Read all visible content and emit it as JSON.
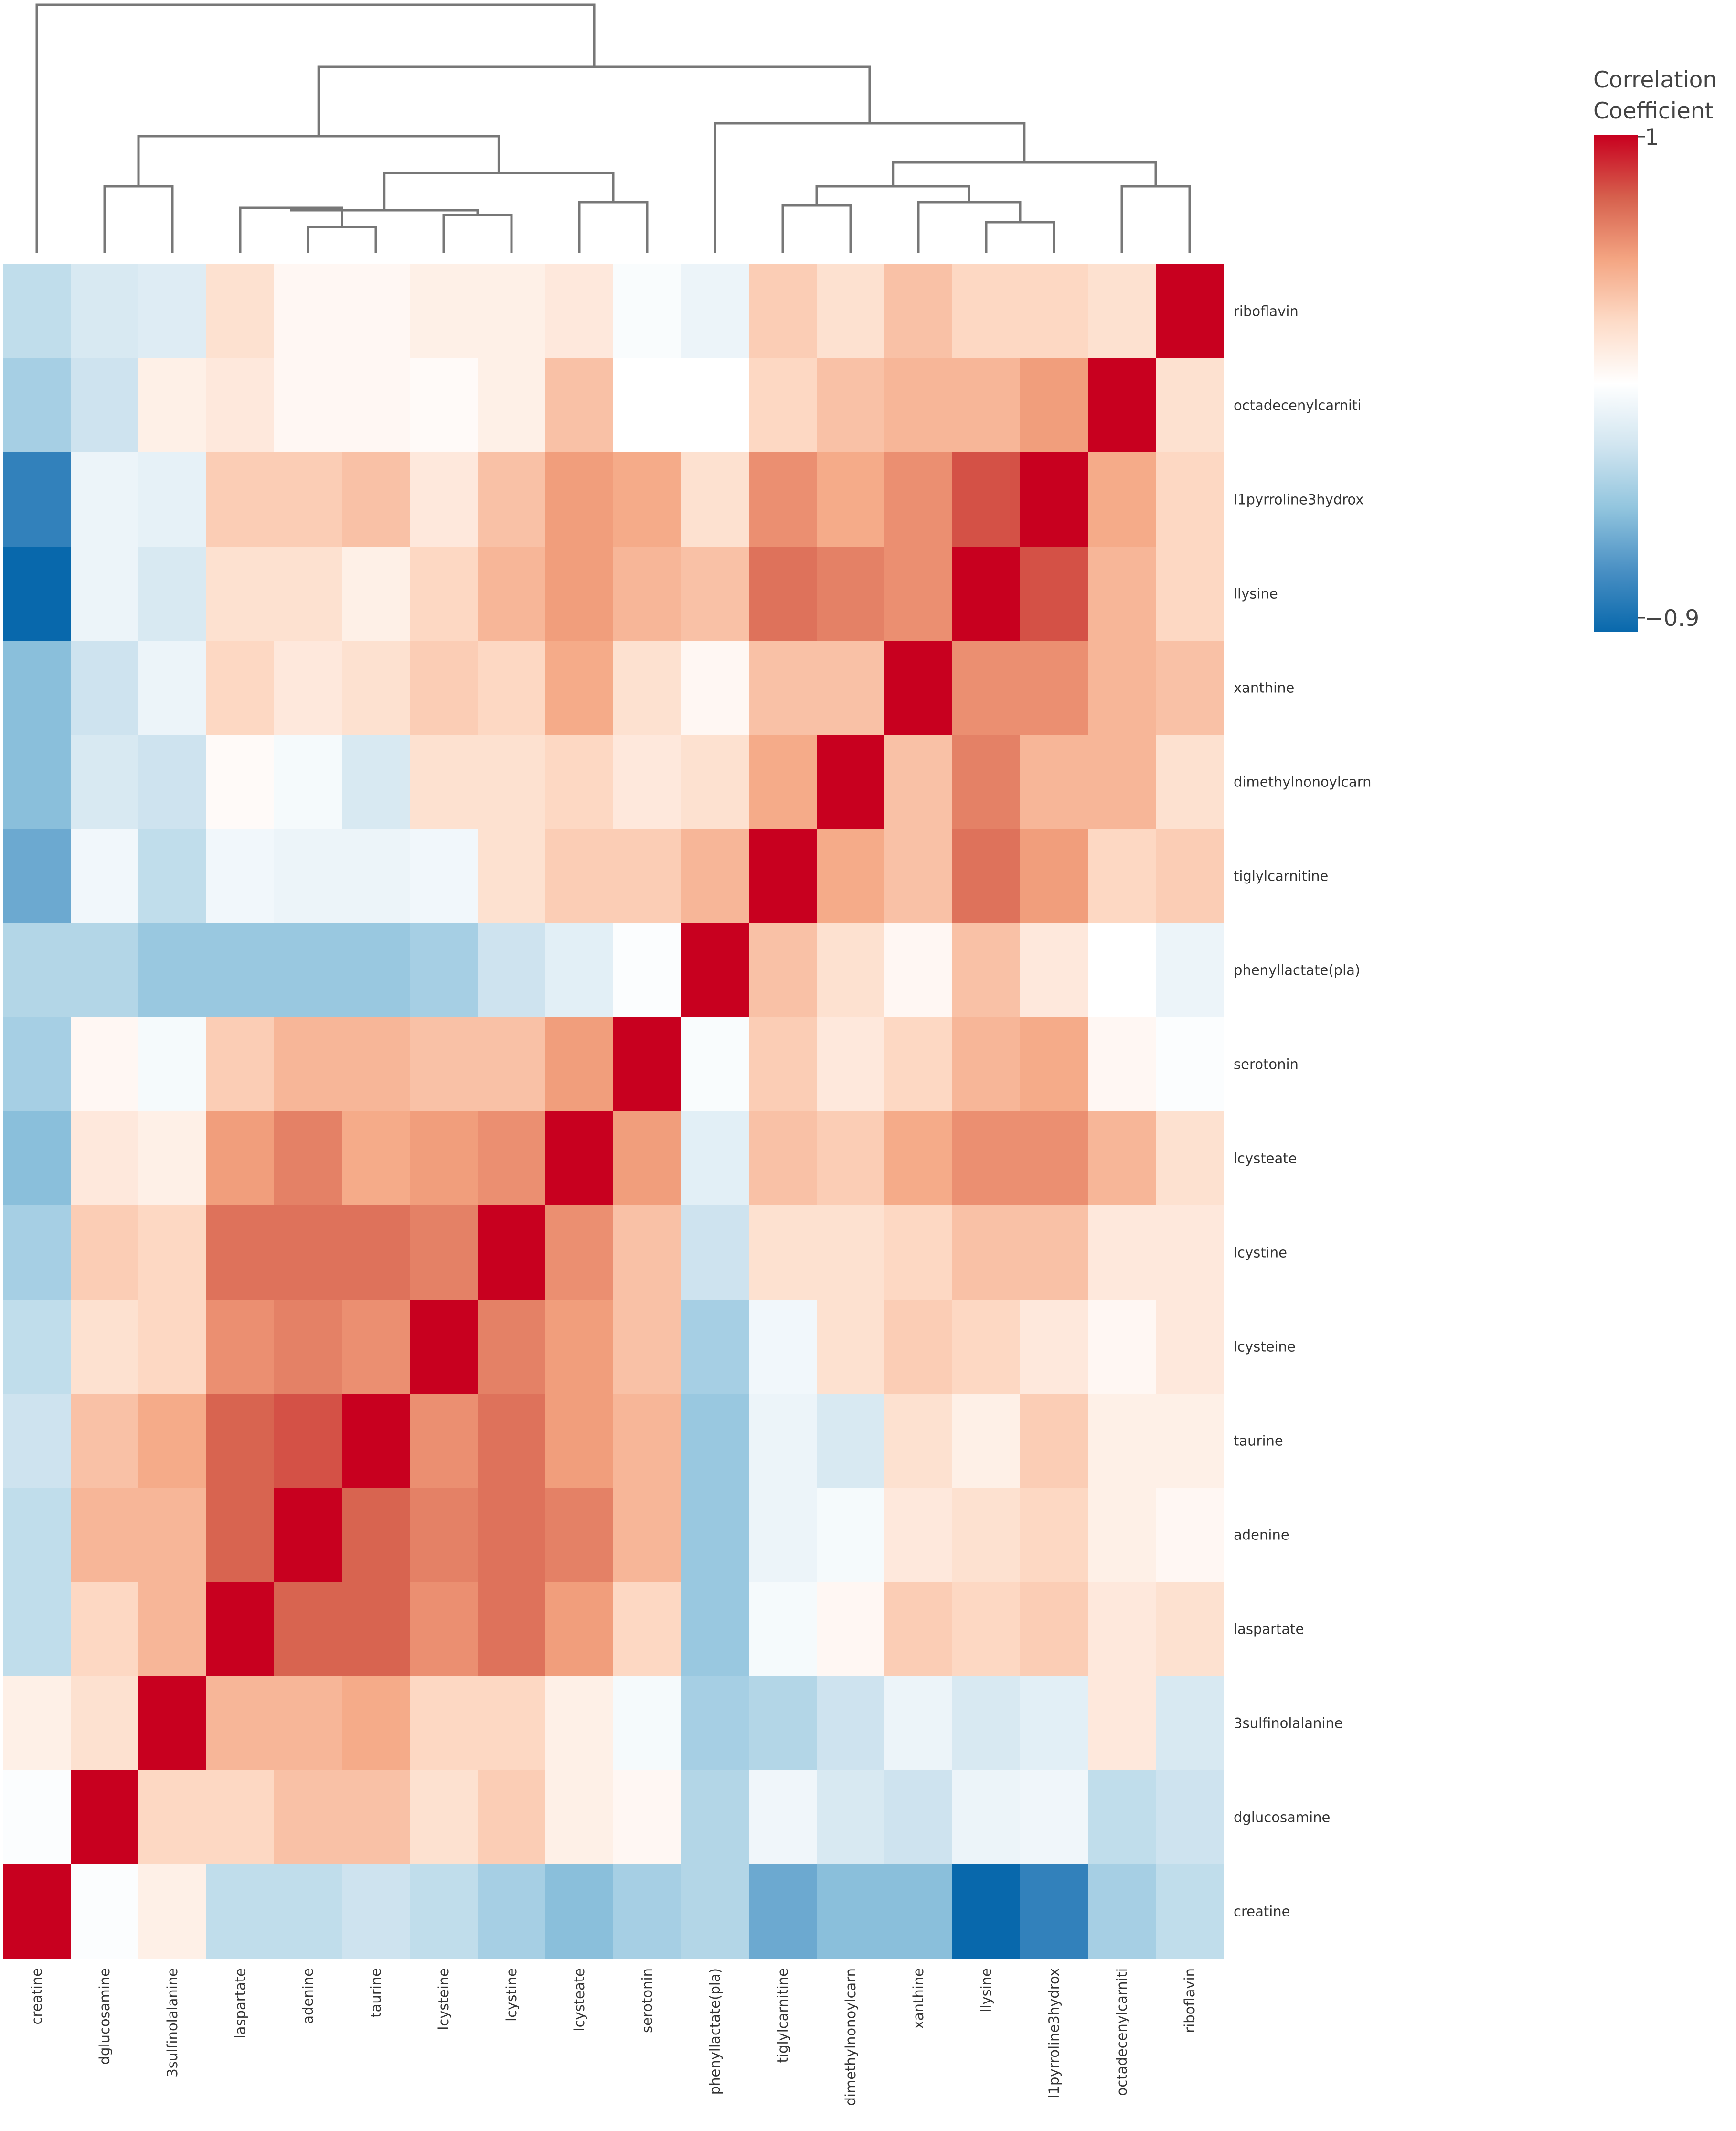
{
  "chart_data": {
    "type": "heatmap",
    "title": "",
    "xlabel": "",
    "ylabel": "",
    "colorbar": {
      "title": [
        "Correlation",
        "Coefficient"
      ],
      "max_label": "1",
      "min_label": "−0.9",
      "range": [
        -0.9,
        1
      ],
      "colors": [
        "#0868ac",
        "#4a90c4",
        "#92c5de",
        "#d1e5f0",
        "#ffffff",
        "#fddbc7",
        "#f4a582",
        "#d6604d",
        "#c8001f"
      ]
    },
    "x_labels": [
      "creatine",
      "dglucosamine",
      "3sulfinolalanine",
      "laspartate",
      "adenine",
      "taurine",
      "lcysteine",
      "lcystine",
      "lcysteate",
      "serotonin",
      "phenyllactate(pla)",
      "tiglylcarnitine",
      "dimethylnonoylcarn",
      "xanthine",
      "llysine",
      "l1pyrroline3hydrox",
      "octadecenylcarniti",
      "riboflavin"
    ],
    "y_labels": [
      "riboflavin",
      "octadecenylcarniti",
      "l1pyrroline3hydrox",
      "llysine",
      "xanthine",
      "dimethylnonoylcarn",
      "tiglylcarnitine",
      "phenyllactate(pla)",
      "serotonin",
      "lcysteate",
      "lcystine",
      "lcysteine",
      "taurine",
      "adenine",
      "laspartate",
      "3sulfinolalanine",
      "dglucosamine",
      "creatine"
    ],
    "values": [
      [
        -0.25,
        -0.15,
        -0.12,
        0.25,
        0.1,
        0.1,
        0.15,
        0.15,
        0.2,
        0.02,
        -0.05,
        0.35,
        0.25,
        0.4,
        0.3,
        0.3,
        0.25,
        1
      ],
      [
        -0.35,
        -0.2,
        0.15,
        0.2,
        0.1,
        0.1,
        0.08,
        0.15,
        0.4,
        0.05,
        0.05,
        0.3,
        0.4,
        0.45,
        0.45,
        0.55,
        1,
        0.25
      ],
      [
        -0.75,
        -0.05,
        -0.08,
        0.35,
        0.35,
        0.4,
        0.2,
        0.4,
        0.55,
        0.5,
        0.25,
        0.6,
        0.5,
        0.6,
        0.8,
        1,
        0.5,
        0.3
      ],
      [
        -0.9,
        -0.05,
        -0.15,
        0.25,
        0.25,
        0.15,
        0.3,
        0.45,
        0.55,
        0.45,
        0.4,
        0.7,
        0.65,
        0.6,
        1,
        0.8,
        0.45,
        0.3
      ],
      [
        -0.45,
        -0.2,
        -0.05,
        0.3,
        0.2,
        0.25,
        0.35,
        0.3,
        0.5,
        0.25,
        0.1,
        0.4,
        0.4,
        1,
        0.6,
        0.6,
        0.45,
        0.4
      ],
      [
        -0.45,
        -0.15,
        -0.2,
        0.08,
        0.0,
        -0.15,
        0.25,
        0.25,
        0.3,
        0.2,
        0.25,
        0.5,
        1,
        0.4,
        0.65,
        0.45,
        0.45,
        0.25
      ],
      [
        -0.55,
        -0.02,
        -0.25,
        -0.02,
        -0.05,
        -0.05,
        -0.02,
        0.25,
        0.35,
        0.35,
        0.45,
        1,
        0.5,
        0.4,
        0.7,
        0.55,
        0.3,
        0.35
      ],
      [
        -0.3,
        -0.3,
        -0.4,
        -0.4,
        -0.4,
        -0.4,
        -0.35,
        -0.2,
        -0.1,
        0.03,
        1,
        0.4,
        0.25,
        0.1,
        0.4,
        0.2,
        0.05,
        -0.05
      ],
      [
        -0.35,
        0.1,
        0.0,
        0.35,
        0.45,
        0.45,
        0.4,
        0.4,
        0.55,
        1,
        0.02,
        0.35,
        0.2,
        0.3,
        0.45,
        0.5,
        0.1,
        0.03
      ],
      [
        -0.45,
        0.2,
        0.15,
        0.55,
        0.65,
        0.5,
        0.55,
        0.6,
        1,
        0.55,
        -0.1,
        0.4,
        0.35,
        0.5,
        0.6,
        0.6,
        0.45,
        0.25
      ],
      [
        -0.35,
        0.35,
        0.3,
        0.7,
        0.7,
        0.7,
        0.65,
        1,
        0.6,
        0.4,
        -0.2,
        0.25,
        0.25,
        0.3,
        0.4,
        0.4,
        0.2,
        0.2
      ],
      [
        -0.25,
        0.25,
        0.3,
        0.6,
        0.65,
        0.6,
        1,
        0.65,
        0.55,
        0.4,
        -0.35,
        -0.02,
        0.25,
        0.35,
        0.3,
        0.2,
        0.1,
        0.2
      ],
      [
        -0.2,
        0.4,
        0.5,
        0.75,
        0.8,
        1,
        0.6,
        0.7,
        0.55,
        0.45,
        -0.4,
        -0.05,
        -0.15,
        0.25,
        0.15,
        0.35,
        0.15,
        0.15
      ],
      [
        -0.25,
        0.45,
        0.45,
        0.75,
        1,
        0.75,
        0.65,
        0.7,
        0.65,
        0.45,
        -0.4,
        -0.05,
        0.0,
        0.2,
        0.25,
        0.3,
        0.15,
        0.1
      ],
      [
        -0.25,
        0.3,
        0.45,
        1,
        0.75,
        0.75,
        0.6,
        0.7,
        0.55,
        0.3,
        -0.4,
        0.0,
        0.1,
        0.35,
        0.3,
        0.35,
        0.2,
        0.25
      ],
      [
        0.15,
        0.25,
        1,
        0.45,
        0.45,
        0.5,
        0.3,
        0.3,
        0.15,
        0.0,
        -0.35,
        -0.3,
        -0.2,
        -0.05,
        -0.15,
        -0.1,
        0.2,
        -0.15
      ],
      [
        0.03,
        1,
        0.3,
        0.3,
        0.4,
        0.4,
        0.25,
        0.35,
        0.15,
        0.1,
        -0.3,
        -0.03,
        -0.15,
        -0.2,
        -0.05,
        -0.03,
        -0.25,
        -0.2
      ],
      [
        1,
        0.03,
        0.15,
        -0.25,
        -0.25,
        -0.2,
        -0.25,
        -0.35,
        -0.45,
        -0.35,
        -0.3,
        -0.55,
        -0.45,
        -0.45,
        -0.9,
        -0.75,
        -0.35,
        -0.25
      ]
    ]
  }
}
